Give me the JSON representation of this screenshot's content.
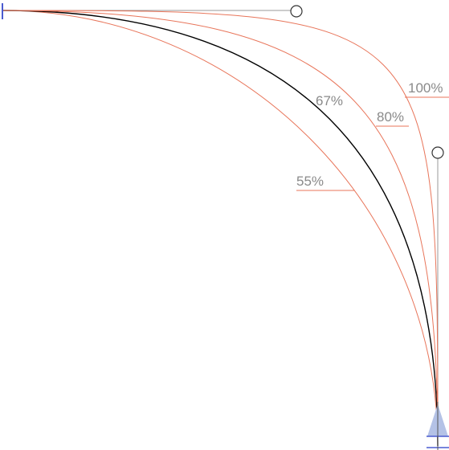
{
  "curves": [
    {
      "label": "55%",
      "tension": 0.55,
      "color": "#e8755a",
      "highlighted": false
    },
    {
      "label": "67%",
      "tension": 0.67,
      "color": "#000000",
      "highlighted": true
    },
    {
      "label": "80%",
      "tension": 0.8,
      "color": "#e8755a",
      "highlighted": false
    },
    {
      "label": "100%",
      "tension": 1.0,
      "color": "#e8755a",
      "highlighted": false
    }
  ],
  "colors": {
    "accent_curve": "#e8755a",
    "main_curve": "#000000",
    "handle": "#999999",
    "anchor_marker": "#4a5bd0",
    "anchor_fill": "#b4c2e6"
  }
}
